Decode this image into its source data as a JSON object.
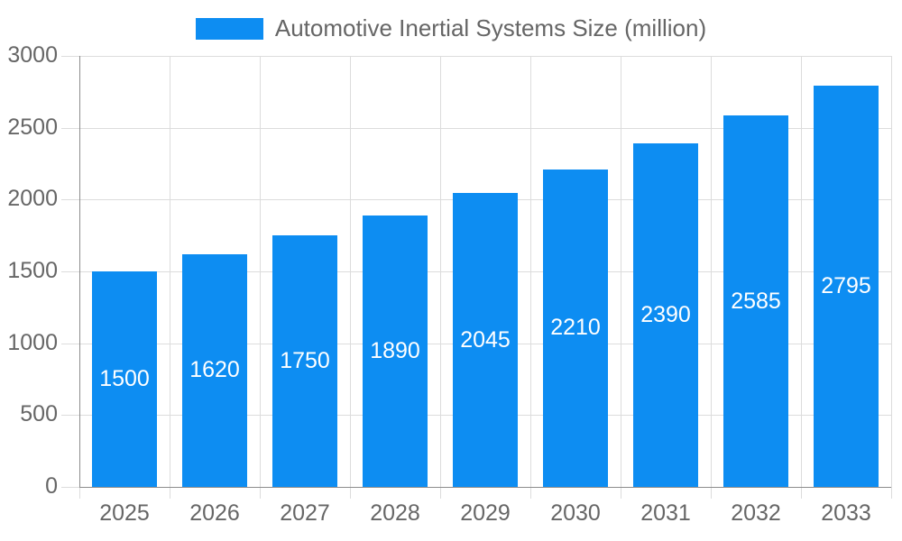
{
  "chart_data": {
    "type": "bar",
    "title": "Automotive Inertial Systems Size (million)",
    "categories": [
      "2025",
      "2026",
      "2027",
      "2028",
      "2029",
      "2030",
      "2031",
      "2032",
      "2033"
    ],
    "series": [
      {
        "name": "Automotive Inertial Systems Size (million)",
        "values": [
          1500,
          1620,
          1750,
          1890,
          2045,
          2210,
          2390,
          2585,
          2795
        ]
      }
    ],
    "xlabel": "",
    "ylabel": "",
    "ylim": [
      0,
      3000
    ],
    "yticks": [
      0,
      500,
      1000,
      1500,
      2000,
      2500,
      3000
    ],
    "grid": true,
    "legend_position": "top",
    "value_labels_inside_bars": true
  },
  "style": {
    "bar_color": "#0d8df2",
    "axis_color": "#8c8c8c",
    "grid_color": "#dcdcdc",
    "label_color": "#666666",
    "value_label_color": "#ffffff",
    "background": "#ffffff"
  }
}
